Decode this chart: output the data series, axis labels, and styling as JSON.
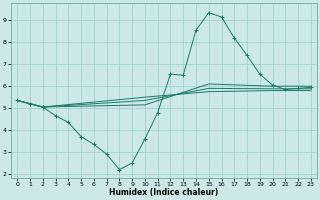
{
  "xlabel": "Humidex (Indice chaleur)",
  "bg_color": "#cce8e8",
  "grid_color": "#99cccc",
  "line_color": "#1a7a6a",
  "xlim": [
    -0.5,
    23.5
  ],
  "ylim": [
    1.8,
    9.8
  ],
  "yticks": [
    2,
    3,
    4,
    5,
    6,
    7,
    8,
    9
  ],
  "xticks": [
    0,
    1,
    2,
    3,
    4,
    5,
    6,
    7,
    8,
    9,
    10,
    11,
    12,
    13,
    14,
    15,
    16,
    17,
    18,
    19,
    20,
    21,
    22,
    23
  ],
  "lines": [
    {
      "x": [
        0,
        1,
        2,
        3,
        4,
        5,
        6,
        7,
        8,
        9,
        10,
        11,
        12,
        13,
        14,
        15,
        16,
        17,
        18,
        19,
        20,
        21,
        22,
        23
      ],
      "y": [
        5.35,
        5.2,
        5.05,
        4.65,
        4.35,
        3.7,
        3.35,
        2.9,
        2.2,
        2.5,
        3.6,
        4.8,
        6.55,
        6.5,
        8.55,
        9.35,
        9.15,
        8.2,
        7.4,
        6.55,
        6.05,
        5.85,
        5.9,
        5.95
      ],
      "marker": "+"
    },
    {
      "x": [
        0,
        2,
        10,
        15,
        20,
        23
      ],
      "y": [
        5.35,
        5.05,
        5.15,
        6.1,
        6.0,
        6.0
      ],
      "marker": null
    },
    {
      "x": [
        0,
        2,
        10,
        15,
        20,
        23
      ],
      "y": [
        5.35,
        5.05,
        5.35,
        5.9,
        5.88,
        5.88
      ],
      "marker": null
    },
    {
      "x": [
        0,
        2,
        10,
        15,
        20,
        23
      ],
      "y": [
        5.35,
        5.05,
        5.5,
        5.75,
        5.8,
        5.8
      ],
      "marker": null
    }
  ]
}
